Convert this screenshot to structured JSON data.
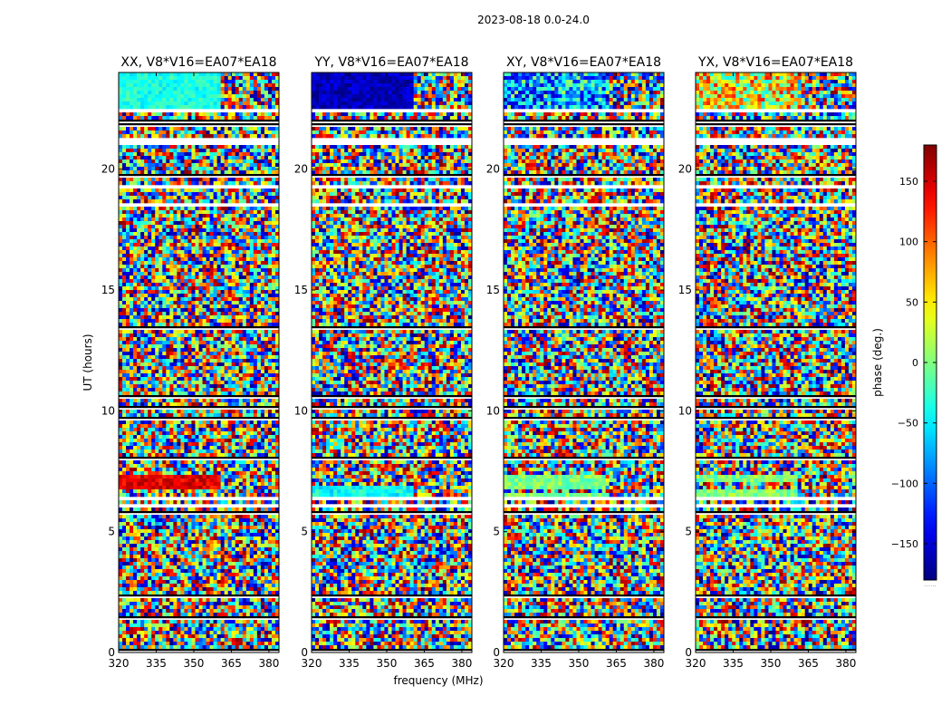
{
  "figure": {
    "suptitle": "2023-08-18 0.0-24.0",
    "xlabel": "frequency (MHz)",
    "ylabel": "UT (hours)"
  },
  "chart_data": {
    "type": "heatmap",
    "colormap": "jet",
    "panels": [
      {
        "title": "XX, V8*V16=EA07*EA18",
        "pol": "XX"
      },
      {
        "title": "YY, V8*V16=EA07*EA18",
        "pol": "YY"
      },
      {
        "title": "XY, V8*V16=EA07*EA18",
        "pol": "XY"
      },
      {
        "title": "YX, V8*V16=EA07*EA18",
        "pol": "YX"
      }
    ],
    "x_ticks": [
      320,
      335,
      350,
      365,
      380
    ],
    "x_tick_labels": [
      "320",
      "335",
      "350",
      "365",
      "380"
    ],
    "xlim": [
      320,
      384
    ],
    "y_ticks": [
      0,
      5,
      10,
      15,
      20
    ],
    "y_tick_labels": [
      "0",
      "5",
      "10",
      "15",
      "20"
    ],
    "ylim": [
      0,
      24
    ],
    "colorbar": {
      "label": "phase (deg.)",
      "range": [
        -180,
        180
      ],
      "ticks": [
        150,
        100,
        50,
        0,
        -50,
        -100,
        -150
      ],
      "tick_labels": [
        "150",
        "100",
        "50",
        "0",
        "−50",
        "−100",
        "−150"
      ],
      "footer": "......"
    }
  }
}
